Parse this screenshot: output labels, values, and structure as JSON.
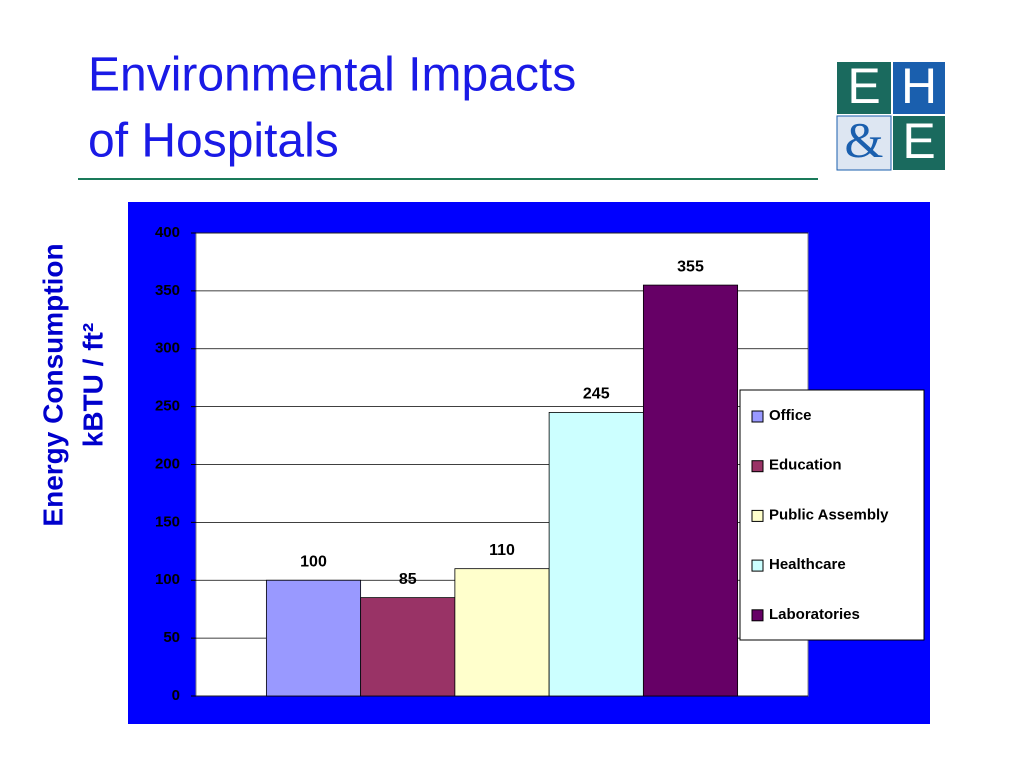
{
  "chart_data": {
    "type": "bar",
    "title": [
      "Environmental Impacts",
      "of Hospitals"
    ],
    "logo": [
      "E",
      "H",
      "&",
      "E"
    ],
    "y_label": [
      "Energy Consumption",
      "kBTU / ft²"
    ],
    "categories": [
      null
    ],
    "series": [
      {
        "name": "Office",
        "color": "#9999ff",
        "values": [
          100
        ]
      },
      {
        "name": "Education",
        "color": "#993366",
        "values": [
          85
        ]
      },
      {
        "name": "Public Assembly",
        "color": "#ffffcc",
        "values": [
          110
        ]
      },
      {
        "name": "Healthcare",
        "color": "#ccffff",
        "values": [
          245
        ]
      },
      {
        "name": "Laboratories",
        "color": "#660066",
        "values": [
          355
        ]
      }
    ],
    "ylim": [
      0,
      400
    ],
    "yticks": [
      0,
      50,
      100,
      150,
      200,
      250,
      300,
      350,
      400
    ],
    "grid": true,
    "legend": "right"
  }
}
